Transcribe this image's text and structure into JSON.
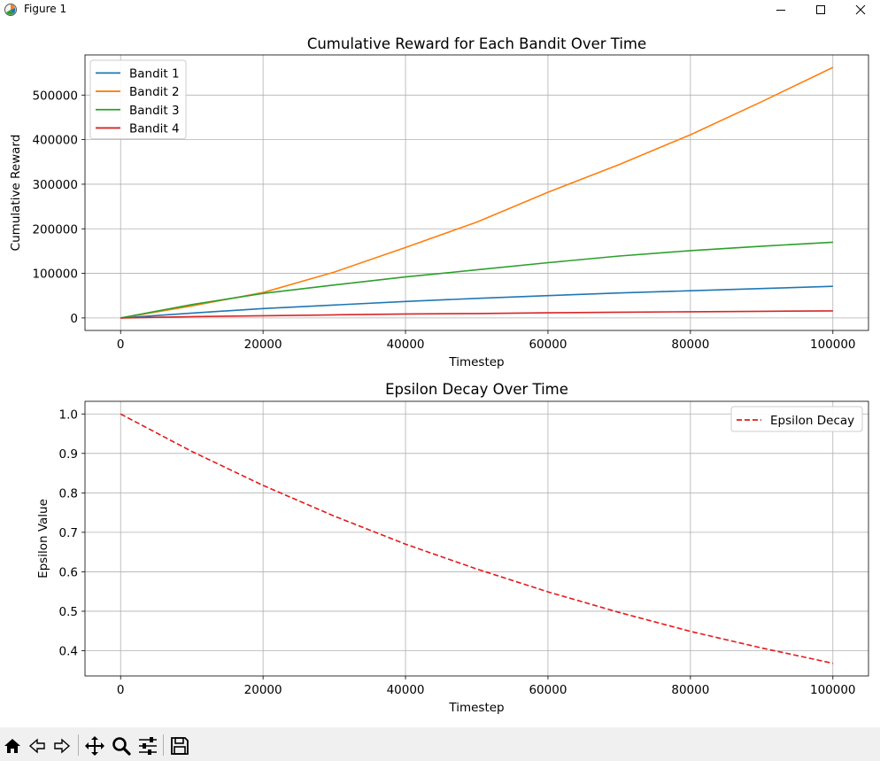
{
  "window": {
    "title": "Figure 1"
  },
  "toolbar": {
    "buttons": [
      "home-icon",
      "back-icon",
      "forward-icon",
      "pan-icon",
      "zoom-icon",
      "configure-subplots-icon",
      "save-icon"
    ]
  },
  "colors": {
    "bandit1": "#1f77b4",
    "bandit2": "#ff7f0e",
    "bandit3": "#2ca02c",
    "bandit4": "#d62728",
    "epsilon": "#e41a1c",
    "grid": "#b0b0b0"
  },
  "chart_data": [
    {
      "type": "line",
      "title": "Cumulative Reward for Each Bandit Over Time",
      "xlabel": "Timestep",
      "ylabel": "Cumulative Reward",
      "xlim": [
        -5000,
        105000
      ],
      "ylim": [
        -28000,
        590000
      ],
      "xticks": [
        0,
        20000,
        40000,
        60000,
        80000,
        100000
      ],
      "yticks": [
        0,
        100000,
        200000,
        300000,
        400000,
        500000
      ],
      "grid": true,
      "legend_position": "top-left",
      "x": [
        0,
        10000,
        20000,
        30000,
        40000,
        50000,
        60000,
        70000,
        80000,
        90000,
        100000
      ],
      "series": [
        {
          "name": "Bandit 1",
          "color": "#1f77b4",
          "style": "solid",
          "values": [
            0,
            11000,
            21000,
            29000,
            37000,
            44000,
            50000,
            56000,
            61000,
            66000,
            71000
          ]
        },
        {
          "name": "Bandit 2",
          "color": "#ff7f0e",
          "style": "solid",
          "values": [
            0,
            27000,
            57000,
            103000,
            158000,
            215000,
            282000,
            344000,
            411000,
            485000,
            562000
          ]
        },
        {
          "name": "Bandit 3",
          "color": "#2ca02c",
          "style": "solid",
          "values": [
            0,
            30000,
            55000,
            74000,
            92000,
            108000,
            124000,
            139000,
            151000,
            161000,
            170000
          ]
        },
        {
          "name": "Bandit 4",
          "color": "#d62728",
          "style": "solid",
          "values": [
            0,
            3000,
            5000,
            7000,
            9000,
            10000,
            11500,
            13000,
            14000,
            15000,
            16000
          ]
        }
      ]
    },
    {
      "type": "line",
      "title": "Epsilon Decay Over Time",
      "xlabel": "Timestep",
      "ylabel": "Epsilon Value",
      "xlim": [
        -5000,
        105000
      ],
      "ylim": [
        0.336,
        1.032
      ],
      "xticks": [
        0,
        20000,
        40000,
        60000,
        80000,
        100000
      ],
      "yticks": [
        0.4,
        0.5,
        0.6,
        0.7,
        0.8,
        0.9,
        1.0
      ],
      "ytick_labels": [
        "0.4",
        "0.5",
        "0.6",
        "0.7",
        "0.8",
        "0.9",
        "1.0"
      ],
      "grid": true,
      "legend_position": "top-right",
      "x": [
        0,
        10000,
        20000,
        30000,
        40000,
        50000,
        60000,
        70000,
        80000,
        90000,
        100000
      ],
      "series": [
        {
          "name": "Epsilon Decay",
          "color": "#e41a1c",
          "style": "dashed",
          "values": [
            1.0,
            0.905,
            0.819,
            0.741,
            0.67,
            0.607,
            0.549,
            0.497,
            0.449,
            0.407,
            0.368
          ]
        }
      ]
    }
  ]
}
